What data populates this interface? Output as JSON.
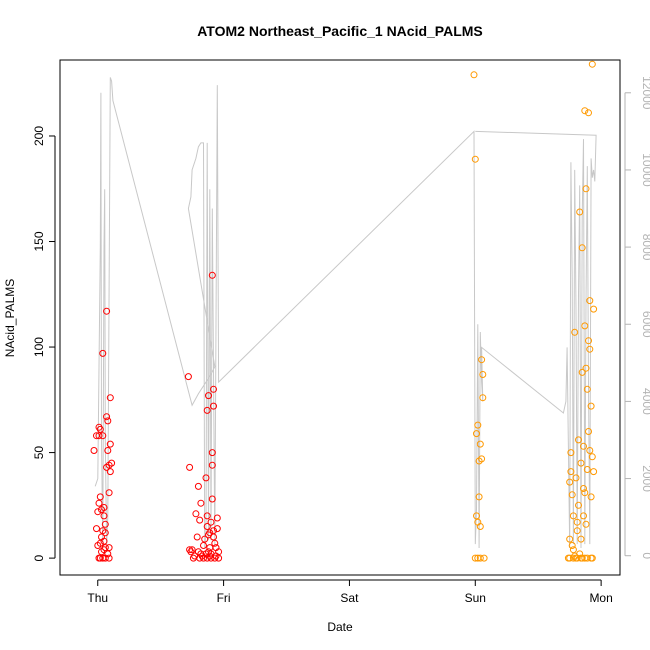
{
  "chart_data": {
    "type": "scatter",
    "title": "ATOM2 Northeast_Pacific_1 NAcid_PALMS",
    "xlabel": "Date",
    "ylabel": "NAcid_PALMS",
    "x_ticks": [
      "Thu",
      "Fri",
      "Sat",
      "Sun",
      "Mon"
    ],
    "xlim": [
      -0.3,
      4.15
    ],
    "ylim": [
      -8,
      236
    ],
    "y_ticks": [
      0,
      50,
      100,
      150,
      200
    ],
    "y2_ticks": [
      0,
      2000,
      4000,
      6000,
      8000,
      10000,
      12000
    ],
    "y2lim": [
      -500,
      12850
    ],
    "grid": false,
    "colors": {
      "red_series": "#ff0000",
      "orange_series": "#ff9900",
      "altitude_line": "#c8c8c8",
      "axis": "#000000",
      "y2_axis": "#b3b3b3"
    },
    "series": [
      {
        "color": "red",
        "points": [
          [
            -0.03,
            51
          ],
          [
            -0.01,
            14
          ],
          [
            -0.01,
            58
          ],
          [
            0.0,
            22
          ],
          [
            0.0,
            6
          ],
          [
            0.01,
            0
          ],
          [
            0.01,
            58
          ],
          [
            0.01,
            62
          ],
          [
            0.01,
            26
          ],
          [
            0.02,
            29
          ],
          [
            0.02,
            7
          ],
          [
            0.02,
            0
          ],
          [
            0.02,
            61
          ],
          [
            0.03,
            23
          ],
          [
            0.03,
            10
          ],
          [
            0.03,
            3
          ],
          [
            0.04,
            97
          ],
          [
            0.04,
            58
          ],
          [
            0.04,
            13
          ],
          [
            0.04,
            0
          ],
          [
            0.05,
            24
          ],
          [
            0.05,
            4
          ],
          [
            0.05,
            8
          ],
          [
            0.05,
            20
          ],
          [
            0.06,
            12
          ],
          [
            0.06,
            5
          ],
          [
            0.06,
            0
          ],
          [
            0.06,
            16
          ],
          [
            0.07,
            117
          ],
          [
            0.07,
            67
          ],
          [
            0.07,
            43
          ],
          [
            0.08,
            65
          ],
          [
            0.08,
            51
          ],
          [
            0.08,
            2
          ],
          [
            0.09,
            44
          ],
          [
            0.09,
            31
          ],
          [
            0.09,
            5
          ],
          [
            0.09,
            0
          ],
          [
            0.1,
            76
          ],
          [
            0.1,
            54
          ],
          [
            0.1,
            41
          ],
          [
            0.11,
            45
          ],
          [
            0.72,
            86
          ],
          [
            0.73,
            43
          ],
          [
            0.73,
            4
          ],
          [
            0.74,
            3
          ],
          [
            0.75,
            4
          ],
          [
            0.76,
            0
          ],
          [
            0.77,
            1
          ],
          [
            0.78,
            21
          ],
          [
            0.79,
            10
          ],
          [
            0.8,
            34
          ],
          [
            0.8,
            3
          ],
          [
            0.81,
            18
          ],
          [
            0.81,
            0
          ],
          [
            0.82,
            2
          ],
          [
            0.82,
            26
          ],
          [
            0.83,
            1
          ],
          [
            0.84,
            0
          ],
          [
            0.84,
            6
          ],
          [
            0.85,
            9
          ],
          [
            0.86,
            2
          ],
          [
            0.86,
            38
          ],
          [
            0.87,
            15
          ],
          [
            0.87,
            70
          ],
          [
            0.87,
            20
          ],
          [
            0.87,
            0
          ],
          [
            0.88,
            77
          ],
          [
            0.88,
            3
          ],
          [
            0.88,
            11
          ],
          [
            0.89,
            12
          ],
          [
            0.89,
            1
          ],
          [
            0.89,
            5
          ],
          [
            0.9,
            0
          ],
          [
            0.9,
            2
          ],
          [
            0.9,
            17
          ],
          [
            0.91,
            134
          ],
          [
            0.91,
            44
          ],
          [
            0.91,
            50
          ],
          [
            0.91,
            28
          ],
          [
            0.92,
            10
          ],
          [
            0.92,
            72
          ],
          [
            0.92,
            80
          ],
          [
            0.92,
            13
          ],
          [
            0.93,
            7
          ],
          [
            0.93,
            0
          ],
          [
            0.94,
            5
          ],
          [
            0.94,
            1
          ],
          [
            0.95,
            19
          ],
          [
            0.95,
            14
          ],
          [
            0.96,
            0
          ],
          [
            0.96,
            3
          ]
        ]
      },
      {
        "color": "orange",
        "points": [
          [
            2.99,
            229
          ],
          [
            3.0,
            189
          ],
          [
            3.0,
            0
          ],
          [
            3.01,
            20
          ],
          [
            3.01,
            59
          ],
          [
            3.02,
            17
          ],
          [
            3.02,
            0
          ],
          [
            3.02,
            63
          ],
          [
            3.03,
            46
          ],
          [
            3.03,
            29
          ],
          [
            3.04,
            54
          ],
          [
            3.04,
            0
          ],
          [
            3.04,
            15
          ],
          [
            3.05,
            94
          ],
          [
            3.05,
            47
          ],
          [
            3.06,
            76
          ],
          [
            3.06,
            87
          ],
          [
            3.07,
            0
          ],
          [
            3.74,
            0
          ],
          [
            3.75,
            0
          ],
          [
            3.75,
            36
          ],
          [
            3.75,
            9
          ],
          [
            3.76,
            50
          ],
          [
            3.76,
            41
          ],
          [
            3.77,
            6
          ],
          [
            3.77,
            30
          ],
          [
            3.78,
            20
          ],
          [
            3.78,
            0
          ],
          [
            3.78,
            4
          ],
          [
            3.79,
            107
          ],
          [
            3.79,
            1
          ],
          [
            3.8,
            0
          ],
          [
            3.8,
            38
          ],
          [
            3.81,
            0
          ],
          [
            3.81,
            13
          ],
          [
            3.81,
            17
          ],
          [
            3.82,
            25
          ],
          [
            3.82,
            56
          ],
          [
            3.83,
            164
          ],
          [
            3.83,
            2
          ],
          [
            3.84,
            0
          ],
          [
            3.84,
            9
          ],
          [
            3.84,
            45
          ],
          [
            3.85,
            147
          ],
          [
            3.85,
            88
          ],
          [
            3.85,
            0
          ],
          [
            3.86,
            20
          ],
          [
            3.86,
            33
          ],
          [
            3.86,
            53
          ],
          [
            3.87,
            212
          ],
          [
            3.87,
            31
          ],
          [
            3.87,
            110
          ],
          [
            3.87,
            0
          ],
          [
            3.88,
            175
          ],
          [
            3.88,
            90
          ],
          [
            3.88,
            16
          ],
          [
            3.89,
            0
          ],
          [
            3.89,
            42
          ],
          [
            3.89,
            80
          ],
          [
            3.9,
            211
          ],
          [
            3.9,
            103
          ],
          [
            3.9,
            60
          ],
          [
            3.91,
            122
          ],
          [
            3.91,
            99
          ],
          [
            3.91,
            51
          ],
          [
            3.92,
            0
          ],
          [
            3.92,
            72
          ],
          [
            3.92,
            29
          ],
          [
            3.93,
            234
          ],
          [
            3.93,
            48
          ],
          [
            3.93,
            0
          ],
          [
            3.94,
            118
          ],
          [
            3.94,
            41
          ]
        ]
      }
    ],
    "altitude_line": [
      [
        -0.02,
        1800
      ],
      [
        0.0,
        2000
      ],
      [
        0.02,
        8000
      ],
      [
        0.025,
        12000
      ],
      [
        0.03,
        3000
      ],
      [
        0.04,
        200
      ],
      [
        0.05,
        8000
      ],
      [
        0.055,
        9500
      ],
      [
        0.06,
        3000
      ],
      [
        0.07,
        300
      ],
      [
        0.08,
        1000
      ],
      [
        0.1,
        12400
      ],
      [
        0.11,
        12300
      ],
      [
        0.12,
        11800
      ],
      [
        0.75,
        3900
      ],
      [
        0.8,
        4200
      ],
      [
        0.9,
        4700
      ],
      [
        0.93,
        4900
      ],
      [
        0.72,
        9000
      ],
      [
        0.74,
        9300
      ],
      [
        0.75,
        10000
      ],
      [
        0.78,
        10300
      ],
      [
        0.8,
        10600
      ],
      [
        0.82,
        10700
      ],
      [
        0.84,
        10700
      ],
      [
        0.85,
        200
      ],
      [
        0.86,
        600
      ],
      [
        0.87,
        10700
      ],
      [
        0.88,
        400
      ],
      [
        0.89,
        9500
      ],
      [
        0.9,
        400
      ],
      [
        0.91,
        9000
      ],
      [
        0.93,
        300
      ],
      [
        0.95,
        12200
      ],
      [
        0.96,
        4500
      ],
      [
        2.99,
        11000
      ],
      [
        3.0,
        300
      ],
      [
        3.01,
        1200
      ],
      [
        3.02,
        6000
      ],
      [
        3.03,
        200
      ],
      [
        3.04,
        5800
      ],
      [
        3.05,
        4500
      ],
      [
        3.06,
        4000
      ],
      [
        3.05,
        5400
      ],
      [
        3.7,
        3700
      ],
      [
        3.72,
        4000
      ],
      [
        3.73,
        5400
      ],
      [
        3.75,
        200
      ],
      [
        3.76,
        10200
      ],
      [
        3.77,
        7200
      ],
      [
        3.78,
        300
      ],
      [
        3.79,
        10000
      ],
      [
        3.8,
        6400
      ],
      [
        3.81,
        300
      ],
      [
        3.82,
        6800
      ],
      [
        3.83,
        9600
      ],
      [
        3.84,
        200
      ],
      [
        3.85,
        8800
      ],
      [
        3.86,
        10800
      ],
      [
        3.87,
        300
      ],
      [
        3.88,
        6600
      ],
      [
        3.89,
        10100
      ],
      [
        3.9,
        4400
      ],
      [
        3.91,
        300
      ],
      [
        3.92,
        10300
      ],
      [
        3.93,
        9800
      ],
      [
        3.94,
        10000
      ],
      [
        3.95,
        9700
      ],
      [
        3.96,
        10900
      ],
      [
        3.0,
        11000
      ]
    ]
  }
}
